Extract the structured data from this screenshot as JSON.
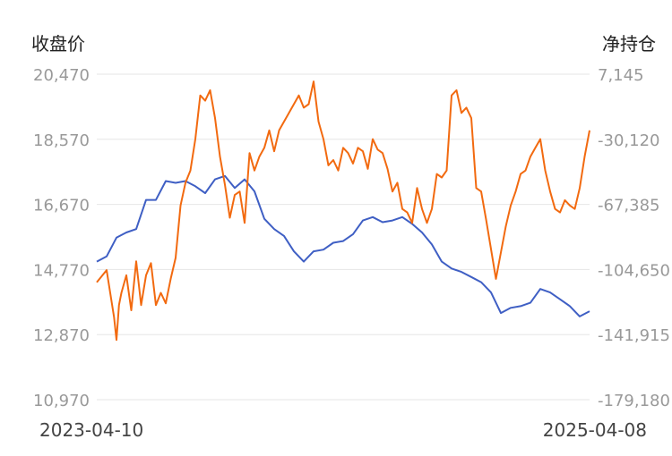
{
  "chart_data": {
    "type": "line",
    "title": "",
    "y_left_label": "收盘价",
    "y_right_label": "净持仓",
    "x_tick_labels": [
      "2023-04-10",
      "2025-04-08"
    ],
    "y_left_ticks": [
      "20,470",
      "18,570",
      "16,670",
      "14,770",
      "12,870",
      "10,970"
    ],
    "y_right_ticks": [
      "7,145",
      "-30,120",
      "-67,385",
      "-104,650",
      "-141,915",
      "-179,180"
    ],
    "y_left_range": [
      10970,
      20470
    ],
    "y_right_range": [
      -179180,
      7145
    ],
    "grid": "horizontal",
    "colors": {
      "close_price": "#3f5fc4",
      "net_position": "#f26a10",
      "grid": "#e6e6e6"
    },
    "series": [
      {
        "axis": "left",
        "x": [
          0,
          2,
          4,
          6,
          8,
          10,
          12,
          14,
          16,
          18,
          20,
          22,
          24,
          26,
          28,
          30,
          32,
          34,
          36,
          38,
          40,
          42,
          44,
          46,
          48,
          50,
          52,
          54,
          56,
          58,
          60,
          62,
          64,
          66,
          68,
          70,
          72,
          74,
          76,
          78,
          80,
          82,
          84,
          86,
          88,
          90,
          92,
          94,
          96,
          98,
          100
        ],
        "values": [
          15000,
          15150,
          15700,
          15850,
          15950,
          16800,
          16800,
          17350,
          17300,
          17350,
          17200,
          17000,
          17400,
          17500,
          17150,
          17400,
          17050,
          16250,
          15950,
          15750,
          15300,
          15000,
          15300,
          15350,
          15550,
          15600,
          15800,
          16200,
          16300,
          16150,
          16200,
          16300,
          16100,
          15850,
          15500,
          15000,
          14800,
          14700,
          14550,
          14400,
          14100,
          13500,
          13650,
          13700,
          13800,
          14200,
          14100,
          13900,
          13700,
          13400,
          13550
        ]
      },
      {
        "axis": "right",
        "x": [
          0,
          2,
          3.5,
          4,
          4.5,
          5,
          6,
          7,
          8,
          9,
          10,
          11,
          12,
          13,
          14,
          15,
          16,
          17,
          18,
          19,
          20,
          21,
          22,
          23,
          24,
          25,
          26,
          27,
          28,
          29,
          30,
          31,
          32,
          33,
          34,
          35,
          36,
          37,
          38,
          39,
          40,
          41,
          42,
          43,
          44,
          45,
          46,
          47,
          48,
          49,
          50,
          51,
          52,
          53,
          54,
          55,
          56,
          57,
          58,
          59,
          60,
          61,
          62,
          63,
          64,
          65,
          66,
          67,
          68,
          69,
          70,
          71,
          72,
          73,
          74,
          75,
          76,
          77,
          78,
          79,
          80,
          81,
          82,
          83,
          84,
          85,
          86,
          87,
          88,
          89,
          90,
          91,
          92,
          93,
          94,
          95,
          96,
          97,
          98,
          99,
          100
        ],
        "values": [
          -112000,
          -105000,
          -132000,
          -145000,
          -125000,
          -118000,
          -108000,
          -128000,
          -100000,
          -125000,
          -108000,
          -101000,
          -125000,
          -118000,
          -124000,
          -110000,
          -98000,
          -68000,
          -55000,
          -48000,
          -30000,
          -5000,
          -8000,
          -2000,
          -18000,
          -40000,
          -56000,
          -75000,
          -62000,
          -60000,
          -78000,
          -38000,
          -48000,
          -40000,
          -35000,
          -25000,
          -37000,
          -25000,
          -20000,
          -15000,
          -10000,
          -5000,
          -12000,
          -10000,
          3000,
          -20000,
          -30000,
          -45000,
          -42000,
          -48000,
          -35000,
          -38000,
          -44000,
          -35000,
          -37000,
          -47000,
          -30000,
          -36000,
          -38000,
          -47000,
          -60000,
          -55000,
          -70000,
          -72000,
          -78000,
          -58000,
          -70000,
          -78000,
          -70000,
          -50000,
          -52000,
          -48000,
          -5000,
          -2000,
          -15000,
          -12000,
          -18000,
          -58000,
          -60000,
          -76000,
          -93000,
          -110000,
          -95000,
          -80000,
          -68000,
          -60000,
          -50000,
          -48000,
          -40000,
          -35000,
          -30000,
          -48000,
          -60000,
          -70000,
          -72000,
          -65000,
          -68000,
          -70000,
          -58000,
          -40000,
          -25000
        ]
      }
    ]
  }
}
